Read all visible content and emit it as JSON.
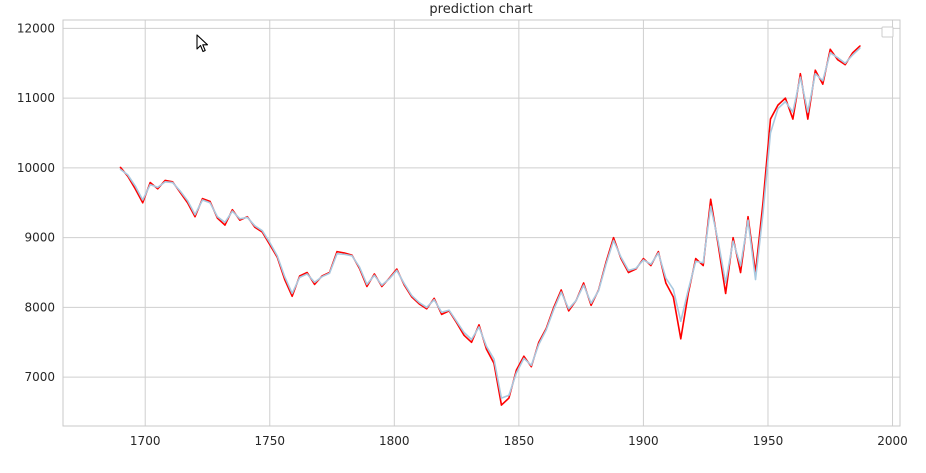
{
  "chart_data": {
    "type": "line",
    "title": "prediction chart",
    "xlabel": "",
    "ylabel": "",
    "xlim": [
      1667,
      2003
    ],
    "ylim": [
      6300,
      12120
    ],
    "x_ticks": [
      1700,
      1750,
      1800,
      1850,
      1900,
      1950,
      2000
    ],
    "y_ticks": [
      7000,
      8000,
      9000,
      10000,
      11000,
      12000
    ],
    "grid": true,
    "legend": {
      "placement": "top-right",
      "entries": []
    },
    "colors": {
      "series_1": "#ff0000",
      "series_2": "#a9c9e0",
      "grid": "#cfcfcf",
      "axes": "#c9c9c9",
      "text": "#262626"
    },
    "series": [
      {
        "x": [
          1690,
          1693,
          1696,
          1699,
          1702,
          1705,
          1708,
          1711,
          1714,
          1717,
          1720,
          1723,
          1726,
          1729,
          1732,
          1735,
          1738,
          1741,
          1744,
          1747,
          1750,
          1753,
          1756,
          1759,
          1762,
          1765,
          1768,
          1771,
          1774,
          1777,
          1780,
          1783,
          1786,
          1789,
          1792,
          1795,
          1798,
          1801,
          1804,
          1807,
          1810,
          1813,
          1816,
          1819,
          1822,
          1825,
          1828,
          1831,
          1834,
          1837,
          1840,
          1843,
          1846,
          1849,
          1852,
          1855,
          1858,
          1861,
          1864,
          1867,
          1870,
          1873,
          1876,
          1879,
          1882,
          1885,
          1888,
          1891,
          1894,
          1897,
          1900,
          1903,
          1906,
          1909,
          1912,
          1915,
          1918,
          1921,
          1924,
          1927,
          1930,
          1933,
          1936,
          1939,
          1942,
          1945,
          1948,
          1951,
          1954,
          1957,
          1960,
          1963,
          1966,
          1969,
          1972,
          1975,
          1978,
          1981,
          1984,
          1987
        ],
        "values": [
          10010,
          9880,
          9700,
          9500,
          9790,
          9700,
          9820,
          9800,
          9650,
          9500,
          9300,
          9560,
          9520,
          9280,
          9180,
          9400,
          9250,
          9300,
          9150,
          9080,
          8900,
          8720,
          8400,
          8160,
          8450,
          8500,
          8330,
          8450,
          8500,
          8800,
          8780,
          8750,
          8560,
          8300,
          8480,
          8300,
          8420,
          8550,
          8320,
          8150,
          8050,
          7980,
          8130,
          7900,
          7950,
          7780,
          7600,
          7500,
          7750,
          7400,
          7200,
          6600,
          6700,
          7100,
          7300,
          7150,
          7500,
          7700,
          8000,
          8250,
          7950,
          8100,
          8350,
          8030,
          8250,
          8650,
          9000,
          8700,
          8500,
          8550,
          8700,
          8600,
          8800,
          8350,
          8150,
          7550,
          8200,
          8700,
          8600,
          9550,
          8900,
          8200,
          9000,
          8500,
          9300,
          8500,
          9500,
          10700,
          10900,
          11000,
          10700,
          11350,
          10700,
          11400,
          11200,
          11700,
          11550,
          11480,
          11650,
          11750
        ]
      },
      {
        "x": [
          1690,
          1693,
          1696,
          1699,
          1702,
          1705,
          1708,
          1711,
          1714,
          1717,
          1720,
          1723,
          1726,
          1729,
          1732,
          1735,
          1738,
          1741,
          1744,
          1747,
          1750,
          1753,
          1756,
          1759,
          1762,
          1765,
          1768,
          1771,
          1774,
          1777,
          1780,
          1783,
          1786,
          1789,
          1792,
          1795,
          1798,
          1801,
          1804,
          1807,
          1810,
          1813,
          1816,
          1819,
          1822,
          1825,
          1828,
          1831,
          1834,
          1837,
          1840,
          1843,
          1846,
          1849,
          1852,
          1855,
          1858,
          1861,
          1864,
          1867,
          1870,
          1873,
          1876,
          1879,
          1882,
          1885,
          1888,
          1891,
          1894,
          1897,
          1900,
          1903,
          1906,
          1909,
          1912,
          1915,
          1918,
          1921,
          1924,
          1927,
          1930,
          1933,
          1936,
          1939,
          1942,
          1945,
          1948,
          1951,
          1954,
          1957,
          1960,
          1963,
          1966,
          1969,
          1972,
          1975,
          1978,
          1981,
          1984,
          1987
        ],
        "values": [
          9980,
          9900,
          9740,
          9540,
          9760,
          9720,
          9800,
          9790,
          9670,
          9530,
          9330,
          9540,
          9500,
          9300,
          9220,
          9380,
          9270,
          9290,
          9170,
          9100,
          8930,
          8740,
          8440,
          8200,
          8430,
          8480,
          8360,
          8440,
          8490,
          8770,
          8760,
          8740,
          8580,
          8330,
          8460,
          8320,
          8410,
          8530,
          8340,
          8170,
          8070,
          8000,
          8110,
          7930,
          7960,
          7800,
          7640,
          7540,
          7720,
          7440,
          7260,
          6700,
          6740,
          7060,
          7270,
          7170,
          7470,
          7680,
          7970,
          8220,
          7980,
          8100,
          8320,
          8060,
          8240,
          8620,
          8960,
          8720,
          8530,
          8560,
          8680,
          8620,
          8780,
          8420,
          8260,
          7800,
          8250,
          8660,
          8640,
          9450,
          8950,
          8350,
          8950,
          8600,
          9250,
          8400,
          9350,
          10500,
          10850,
          10950,
          10800,
          11300,
          10800,
          11350,
          11250,
          11650,
          11580,
          11500,
          11620,
          11720
        ]
      }
    ]
  }
}
